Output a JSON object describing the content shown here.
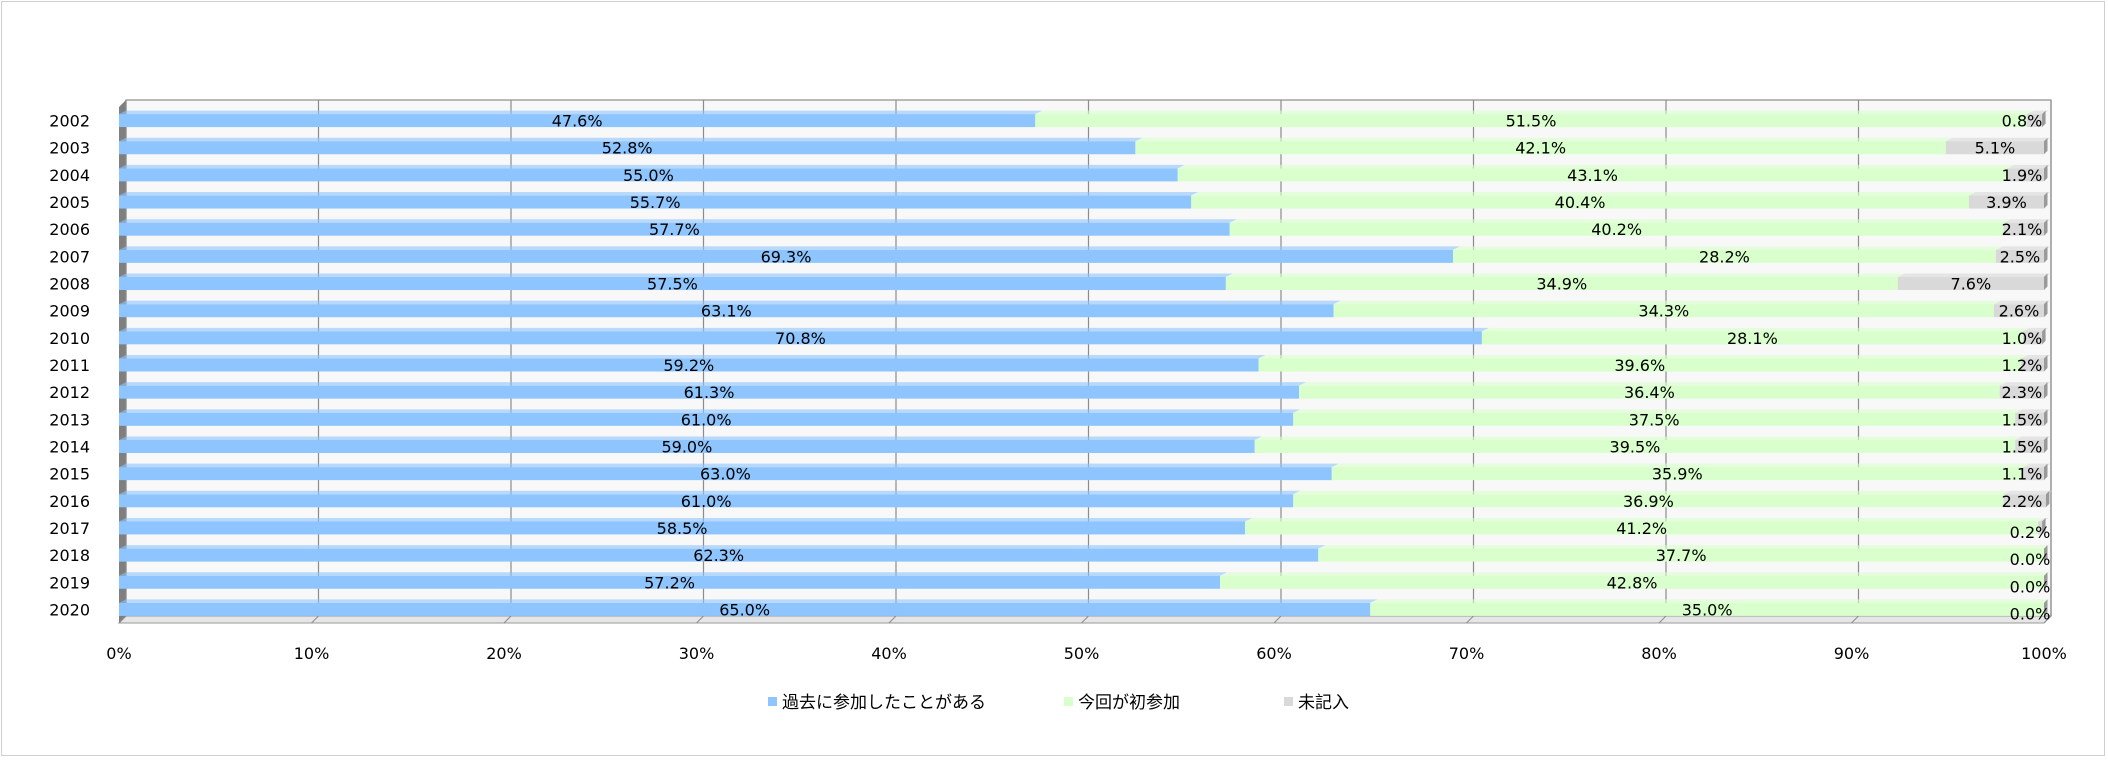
{
  "chart_data": {
    "type": "bar",
    "stacked": "percent",
    "orientation": "horizontal",
    "categories": [
      "2002",
      "2003",
      "2004",
      "2005",
      "2006",
      "2007",
      "2008",
      "2009",
      "2010",
      "2011",
      "2012",
      "2013",
      "2014",
      "2015",
      "2016",
      "2017",
      "2018",
      "2019",
      "2020"
    ],
    "series": [
      {
        "name": "過去に参加したことがある",
        "color": "#8ec5ff",
        "values": [
          47.6,
          52.8,
          55.0,
          55.7,
          57.7,
          69.3,
          57.5,
          63.1,
          70.8,
          59.2,
          61.3,
          61.0,
          59.0,
          63.0,
          61.0,
          58.5,
          62.3,
          57.2,
          65.0
        ],
        "labels": [
          "47.6%",
          "52.8%",
          "55.0%",
          "55.7%",
          "57.7%",
          "69.3%",
          "57.5%",
          "63.1%",
          "70.8%",
          "59.2%",
          "61.3%",
          "61.0%",
          "59.0%",
          "63.0%",
          "61.0%",
          "58.5%",
          "62.3%",
          "57.2%",
          "65.0%"
        ]
      },
      {
        "name": "今回が初参加",
        "color": "#d8ffcc",
        "values": [
          51.5,
          42.1,
          43.1,
          40.4,
          40.2,
          28.2,
          34.9,
          34.3,
          28.1,
          39.6,
          36.4,
          37.5,
          39.5,
          35.9,
          36.9,
          41.2,
          37.7,
          42.8,
          35.0
        ],
        "labels": [
          "51.5%",
          "42.1%",
          "43.1%",
          "40.4%",
          "40.2%",
          "28.2%",
          "34.9%",
          "34.3%",
          "28.1%",
          "39.6%",
          "36.4%",
          "37.5%",
          "39.5%",
          "35.9%",
          "36.9%",
          "41.2%",
          "37.7%",
          "42.8%",
          "35.0%"
        ]
      },
      {
        "name": "未記入",
        "color": "#d9d9d9",
        "values": [
          0.8,
          5.1,
          1.9,
          3.9,
          2.1,
          2.5,
          7.6,
          2.6,
          1.0,
          1.2,
          2.3,
          1.5,
          1.5,
          1.1,
          2.2,
          0.2,
          0.0,
          0.0,
          0.0
        ],
        "labels": [
          "0.8%",
          "5.1%",
          "1.9%",
          "3.9%",
          "2.1%",
          "2.5%",
          "7.6%",
          "2.6%",
          "1.0%",
          "1.2%",
          "2.3%",
          "1.5%",
          "1.5%",
          "1.1%",
          "2.2%",
          "0.2%",
          "0.0%",
          "0.0%",
          "0.0%"
        ]
      }
    ],
    "xlim": [
      0,
      100
    ],
    "xticks": [
      "0%",
      "10%",
      "20%",
      "30%",
      "40%",
      "50%",
      "60%",
      "70%",
      "80%",
      "90%",
      "100%"
    ],
    "grid": true,
    "legend_position": "bottom"
  }
}
